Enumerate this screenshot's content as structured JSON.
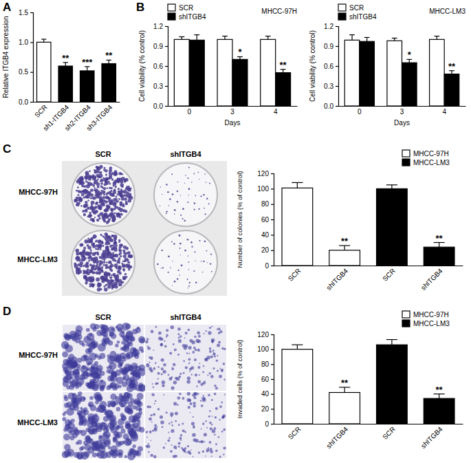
{
  "panels": [
    "A",
    "B",
    "C",
    "D"
  ],
  "images": [
    {
      "columns": [
        "SCR",
        "shITGB4"
      ],
      "rows": [
        "MHCC-97H",
        "MHCC-LM3"
      ]
    },
    {
      "columns": [
        "SCR",
        "shITGB4"
      ],
      "rows": [
        "MHCC-97H",
        "MHCC-LM3"
      ]
    }
  ],
  "chart_data": [
    {
      "type": "bar",
      "categories": [
        "SCR",
        "sh1-ITGB4",
        "sh2-ITGB4",
        "sh3-ITGB4"
      ],
      "values": [
        1.0,
        0.6,
        0.52,
        0.64
      ],
      "errors": [
        0.05,
        0.06,
        0.07,
        0.06
      ],
      "significance": [
        null,
        "**",
        "***",
        "**"
      ],
      "colors": [
        "#ffffff",
        "#000000",
        "#000000",
        "#000000"
      ],
      "ylabel": "Relative ITGB4 expression",
      "ylim": [
        0,
        1.5
      ],
      "yticks": [
        {
          "value": 0,
          "label": "0.0"
        },
        {
          "value": 0.5,
          "label": "0.5"
        },
        {
          "value": 1,
          "label": "1.0"
        },
        {
          "value": 1.5,
          "label": "1.5"
        }
      ]
    },
    {
      "type": "bar",
      "title": "MHCC-97H",
      "xlabel": "Days",
      "ylabel": "Cell viability (% control)",
      "categories": [
        "0",
        "3",
        "4"
      ],
      "series": [
        {
          "name": "SCR",
          "color": "#ffffff",
          "values": [
            1.0,
            1.0,
            1.0
          ],
          "errors": [
            0.04,
            0.05,
            0.05
          ]
        },
        {
          "name": "shITGB4",
          "color": "#000000",
          "values": [
            0.99,
            0.7,
            0.5
          ],
          "errors": [
            0.08,
            0.04,
            0.05
          ],
          "significance": [
            null,
            "*",
            "**"
          ]
        }
      ],
      "legend": "upper left",
      "ylim": [
        0,
        1.2
      ],
      "yticks": [
        {
          "value": 0,
          "label": "0.0"
        },
        {
          "value": 0.3,
          "label": "0.3"
        },
        {
          "value": 0.6,
          "label": "0.6"
        },
        {
          "value": 0.9,
          "label": "0.9"
        },
        {
          "value": 1.2,
          "label": "1.2"
        }
      ]
    },
    {
      "type": "bar",
      "title": "MHCC-LM3",
      "xlabel": "Days",
      "ylabel": "Cell viability (% control)",
      "categories": [
        "0",
        "3",
        "4"
      ],
      "series": [
        {
          "name": "SCR",
          "color": "#ffffff",
          "values": [
            0.99,
            0.98,
            1.0
          ],
          "errors": [
            0.08,
            0.04,
            0.05
          ]
        },
        {
          "name": "shITGB4",
          "color": "#000000",
          "values": [
            0.97,
            0.65,
            0.48
          ],
          "errors": [
            0.06,
            0.05,
            0.05
          ],
          "significance": [
            null,
            "*",
            "**"
          ]
        }
      ],
      "legend": "upper left",
      "ylim": [
        0,
        1.2
      ],
      "yticks": [
        {
          "value": 0,
          "label": "0.0"
        },
        {
          "value": 0.3,
          "label": "0.3"
        },
        {
          "value": 0.6,
          "label": "0.6"
        },
        {
          "value": 0.9,
          "label": "0.9"
        },
        {
          "value": 1.2,
          "label": "1.2"
        }
      ]
    },
    {
      "type": "bar",
      "ylabel": "Number of colonies (% of control)",
      "categories": [
        "SCR",
        "shITGB4",
        "SCR",
        "shITGB4"
      ],
      "series": [
        {
          "name": "MHCC-97H",
          "color": "#ffffff",
          "values": [
            101,
            20,
            null,
            null
          ],
          "errors": [
            7,
            6,
            null,
            null
          ],
          "significance": [
            null,
            "**",
            null,
            null
          ]
        },
        {
          "name": "MHCC-LM3",
          "color": "#000000",
          "values": [
            null,
            null,
            100,
            24
          ],
          "errors": [
            null,
            null,
            5,
            6
          ],
          "significance": [
            null,
            null,
            null,
            "**"
          ]
        }
      ],
      "legend": "upper right",
      "ylim": [
        0,
        120
      ],
      "yticks": [
        0,
        20,
        40,
        60,
        80,
        100,
        120
      ]
    },
    {
      "type": "bar",
      "ylabel": "Invaded cells (% of control)",
      "categories": [
        "SCR",
        "shITGB4",
        "SCR",
        "shITGB4"
      ],
      "series": [
        {
          "name": "MHCC-97H",
          "color": "#ffffff",
          "values": [
            100,
            42,
            null,
            null
          ],
          "errors": [
            6,
            7,
            null,
            null
          ],
          "significance": [
            null,
            "**",
            null,
            null
          ]
        },
        {
          "name": "MHCC-LM3",
          "color": "#000000",
          "values": [
            null,
            null,
            106,
            34
          ],
          "errors": [
            null,
            null,
            7,
            6
          ],
          "significance": [
            null,
            null,
            null,
            "**"
          ]
        }
      ],
      "legend": "upper right",
      "ylim": [
        0,
        120
      ],
      "yticks": [
        0,
        20,
        40,
        60,
        80,
        100,
        120
      ]
    }
  ]
}
